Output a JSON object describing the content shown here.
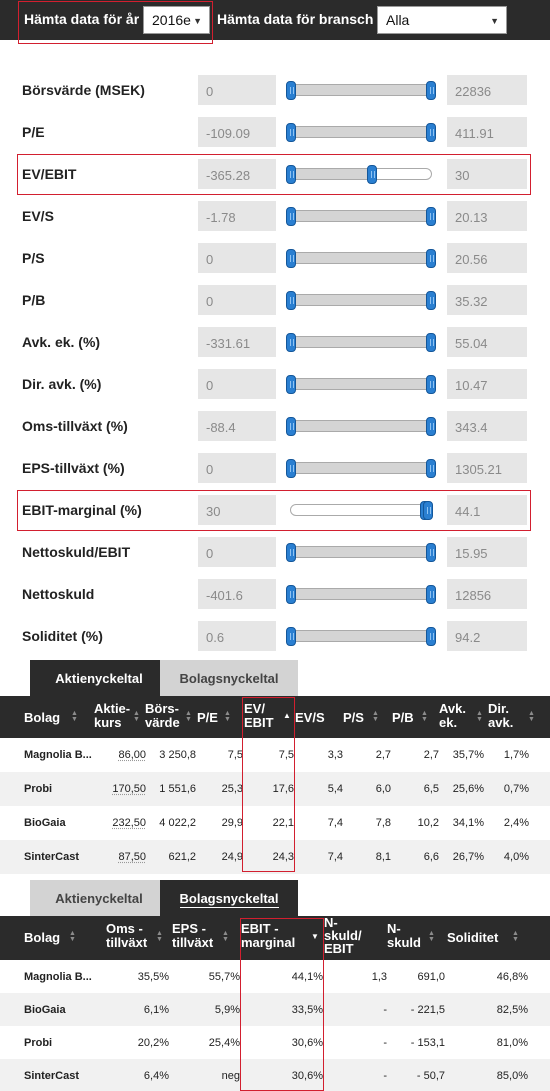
{
  "header": {
    "year_label": "Hämta data för år",
    "year_value": "2016e",
    "industry_label": "Hämta data för bransch",
    "industry_value": "Alla"
  },
  "filters": [
    {
      "id": "borsvarde",
      "label": "Börsvärde (MSEK)",
      "min": "0",
      "max": "22836",
      "low": 0.0,
      "high": 1.0
    },
    {
      "id": "pe",
      "label": "P/E",
      "min": "-109.09",
      "max": "411.91",
      "low": 0.0,
      "high": 1.0
    },
    {
      "id": "ev-ebit",
      "label": "EV/EBIT",
      "min": "-365.28",
      "max": "30",
      "low": 0.0,
      "high": 0.58
    },
    {
      "id": "ev-s",
      "label": "EV/S",
      "min": "-1.78",
      "max": "20.13",
      "low": 0.0,
      "high": 1.0
    },
    {
      "id": "ps",
      "label": "P/S",
      "min": "0",
      "max": "20.56",
      "low": 0.0,
      "high": 1.0
    },
    {
      "id": "pb",
      "label": "P/B",
      "min": "0",
      "max": "35.32",
      "low": 0.0,
      "high": 1.0
    },
    {
      "id": "avk-ek",
      "label": "Avk. ek. (%)",
      "min": "-331.61",
      "max": "55.04",
      "low": 0.0,
      "high": 1.0
    },
    {
      "id": "dir-avk",
      "label": "Dir. avk. (%)",
      "min": "0",
      "max": "10.47",
      "low": 0.0,
      "high": 1.0
    },
    {
      "id": "oms-tillvaxt",
      "label": "Oms-tillväxt (%)",
      "min": "-88.4",
      "max": "343.4",
      "low": 0.0,
      "high": 1.0
    },
    {
      "id": "eps-tillvaxt",
      "label": "EPS-tillväxt (%)",
      "min": "0",
      "max": "1305.21",
      "low": 0.0,
      "high": 1.0
    },
    {
      "id": "ebit-marginal",
      "label": "EBIT-marginal (%)",
      "min": "30",
      "max": "44.1",
      "low": 0.955,
      "high": 0.98
    },
    {
      "id": "nettoskuld-ebit",
      "label": "Nettoskuld/EBIT",
      "min": "0",
      "max": "15.95",
      "low": 0.0,
      "high": 1.0
    },
    {
      "id": "nettoskuld",
      "label": "Nettoskuld",
      "min": "-401.6",
      "max": "12856",
      "low": 0.0,
      "high": 1.0
    },
    {
      "id": "soliditet",
      "label": "Soliditet (%)",
      "min": "0.6",
      "max": "94.2",
      "low": 0.0,
      "high": 1.0
    }
  ],
  "tabs": {
    "aktienyckeltal": "Aktienyckeltal",
    "bolagsnyckeltal": "Bolagsnyckeltal"
  },
  "table1": {
    "headers": [
      "Bolag",
      "Aktie-\nkurs",
      "Börs-\nvärde",
      "P/E",
      "EV/\nEBIT",
      "EV/S",
      "P/S",
      "P/B",
      "Avk.\nek.",
      "Dir.\navk."
    ],
    "rows": [
      [
        "Magnolia B...",
        "86,00",
        "3 250,8",
        "7,5",
        "7,5",
        "3,3",
        "2,7",
        "2,7",
        "35,7%",
        "1,7%"
      ],
      [
        "Probi",
        "170,50",
        "1 551,6",
        "25,3",
        "17,6",
        "5,4",
        "6,0",
        "6,5",
        "25,6%",
        "0,7%"
      ],
      [
        "BioGaia",
        "232,50",
        "4 022,2",
        "29,9",
        "22,1",
        "7,4",
        "7,8",
        "10,2",
        "34,1%",
        "2,4%"
      ],
      [
        "SinterCast",
        "87,50",
        "621,2",
        "24,9",
        "24,3",
        "7,4",
        "8,1",
        "6,6",
        "26,7%",
        "4,0%"
      ]
    ]
  },
  "table2": {
    "headers": [
      "Bolag",
      "Oms -\ntillväxt",
      "EPS -\ntillväxt",
      "EBIT -\nmarginal",
      "N-\nskuld/\nEBIT",
      "N-\nskuld",
      "Soliditet"
    ],
    "rows": [
      [
        "Magnolia B...",
        "35,5%",
        "55,7%",
        "44,1%",
        "1,3",
        "691,0",
        "46,8%"
      ],
      [
        "BioGaia",
        "6,1%",
        "5,9%",
        "33,5%",
        "-",
        "- 221,5",
        "82,5%"
      ],
      [
        "Probi",
        "20,2%",
        "25,4%",
        "30,6%",
        "-",
        "- 153,1",
        "81,0%"
      ],
      [
        "SinterCast",
        "6,4%",
        "neg",
        "30,6%",
        "-",
        "- 50,7",
        "85,0%"
      ]
    ]
  }
}
